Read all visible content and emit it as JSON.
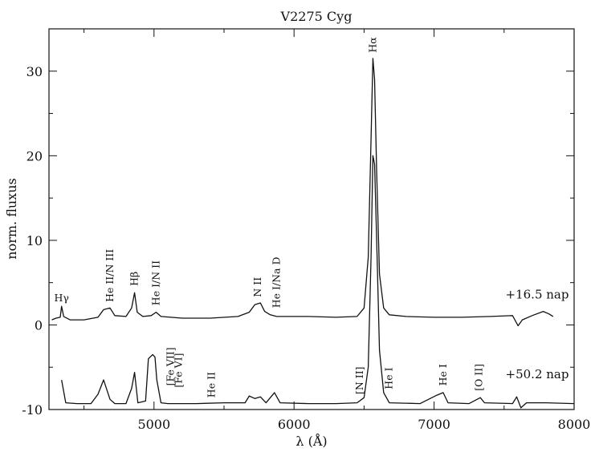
{
  "chart_data": {
    "type": "line",
    "title": "V2275 Cyg",
    "xlabel": "λ (Å)",
    "ylabel": "norm. fluxus",
    "xlim": [
      4250,
      8000
    ],
    "ylim": [
      -10,
      35
    ],
    "x_ticks": [
      "5000",
      "6000",
      "7000",
      "8000"
    ],
    "x_tick_values": [
      5000,
      6000,
      7000,
      8000
    ],
    "y_ticks": [
      "-10",
      "0",
      "10",
      "20",
      "30"
    ],
    "y_tick_values": [
      -10,
      0,
      10,
      20,
      30
    ],
    "series": [
      {
        "name": "+16.5 nap",
        "points": [
          [
            4270,
            0.6
          ],
          [
            4300,
            0.8
          ],
          [
            4330,
            0.9
          ],
          [
            4340,
            2.2
          ],
          [
            4355,
            1.0
          ],
          [
            4400,
            0.6
          ],
          [
            4500,
            0.6
          ],
          [
            4600,
            0.9
          ],
          [
            4640,
            1.8
          ],
          [
            4686,
            2.0
          ],
          [
            4720,
            1.1
          ],
          [
            4800,
            1.0
          ],
          [
            4840,
            2.0
          ],
          [
            4861,
            3.8
          ],
          [
            4880,
            1.5
          ],
          [
            4920,
            1.0
          ],
          [
            4980,
            1.1
          ],
          [
            5015,
            1.5
          ],
          [
            5050,
            1.0
          ],
          [
            5200,
            0.8
          ],
          [
            5400,
            0.8
          ],
          [
            5600,
            1.0
          ],
          [
            5680,
            1.5
          ],
          [
            5720,
            2.4
          ],
          [
            5760,
            2.6
          ],
          [
            5790,
            1.6
          ],
          [
            5830,
            1.2
          ],
          [
            5876,
            1.0
          ],
          [
            5900,
            1.0
          ],
          [
            6100,
            1.0
          ],
          [
            6300,
            0.9
          ],
          [
            6450,
            1.0
          ],
          [
            6500,
            2.0
          ],
          [
            6530,
            8.0
          ],
          [
            6550,
            22.0
          ],
          [
            6563,
            31.5
          ],
          [
            6575,
            29.0
          ],
          [
            6590,
            18.0
          ],
          [
            6610,
            6.0
          ],
          [
            6640,
            2.0
          ],
          [
            6680,
            1.2
          ],
          [
            6800,
            1.0
          ],
          [
            7000,
            0.9
          ],
          [
            7200,
            0.9
          ],
          [
            7400,
            1.0
          ],
          [
            7560,
            1.1
          ],
          [
            7600,
            -0.1
          ],
          [
            7630,
            0.6
          ],
          [
            7700,
            1.1
          ],
          [
            7780,
            1.6
          ],
          [
            7820,
            1.3
          ],
          [
            7850,
            1.0
          ]
        ]
      },
      {
        "name": "+50.2 nap",
        "points": [
          [
            4340,
            -6.5
          ],
          [
            4370,
            -9.2
          ],
          [
            4450,
            -9.3
          ],
          [
            4550,
            -9.3
          ],
          [
            4600,
            -8.2
          ],
          [
            4640,
            -6.5
          ],
          [
            4686,
            -8.8
          ],
          [
            4720,
            -9.3
          ],
          [
            4800,
            -9.3
          ],
          [
            4840,
            -7.5
          ],
          [
            4861,
            -5.6
          ],
          [
            4885,
            -9.2
          ],
          [
            4940,
            -9.0
          ],
          [
            4960,
            -4.0
          ],
          [
            4990,
            -3.5
          ],
          [
            5007,
            -3.8
          ],
          [
            5020,
            -6.5
          ],
          [
            5050,
            -9.2
          ],
          [
            5100,
            -9.3
          ],
          [
            5300,
            -9.3
          ],
          [
            5500,
            -9.2
          ],
          [
            5650,
            -9.2
          ],
          [
            5680,
            -8.4
          ],
          [
            5720,
            -8.7
          ],
          [
            5760,
            -8.5
          ],
          [
            5800,
            -9.2
          ],
          [
            5860,
            -8.0
          ],
          [
            5900,
            -9.2
          ],
          [
            6100,
            -9.3
          ],
          [
            6300,
            -9.3
          ],
          [
            6450,
            -9.2
          ],
          [
            6500,
            -8.6
          ],
          [
            6530,
            -5.0
          ],
          [
            6550,
            8.0
          ],
          [
            6563,
            20.0
          ],
          [
            6575,
            19.0
          ],
          [
            6590,
            10.0
          ],
          [
            6610,
            -3.0
          ],
          [
            6640,
            -8.0
          ],
          [
            6680,
            -9.2
          ],
          [
            6900,
            -9.3
          ],
          [
            7020,
            -8.3
          ],
          [
            7065,
            -8.0
          ],
          [
            7100,
            -9.2
          ],
          [
            7250,
            -9.3
          ],
          [
            7330,
            -8.6
          ],
          [
            7360,
            -9.2
          ],
          [
            7560,
            -9.3
          ],
          [
            7590,
            -8.5
          ],
          [
            7620,
            -9.8
          ],
          [
            7660,
            -9.2
          ],
          [
            7800,
            -9.2
          ],
          [
            8000,
            -9.3
          ]
        ]
      }
    ],
    "annotations": [
      {
        "text": "Hγ",
        "x": 4340,
        "y": 2.8,
        "rotate": 0
      },
      {
        "text": "He II/N III",
        "x": 4686,
        "y": 2.7,
        "rotate": -90
      },
      {
        "text": "Hβ",
        "x": 4861,
        "y": 4.6,
        "rotate": -90
      },
      {
        "text": "He I/N II",
        "x": 5015,
        "y": 2.3,
        "rotate": -90
      },
      {
        "text": "N II",
        "x": 5740,
        "y": 3.3,
        "rotate": -90
      },
      {
        "text": "He I/Na D",
        "x": 5876,
        "y": 2.0,
        "rotate": -90
      },
      {
        "text": "Hα",
        "x": 6563,
        "y": 32.2,
        "rotate": -90
      },
      {
        "text": "[Fe VII]",
        "x": 5120,
        "y": -7.2,
        "rotate": -90
      },
      {
        "text": "[Fe VI]",
        "x": 5176,
        "y": -7.4,
        "rotate": -90
      },
      {
        "text": "He II",
        "x": 5411,
        "y": -8.6,
        "rotate": -90
      },
      {
        "text": "[N II]",
        "x": 6470,
        "y": -8.2,
        "rotate": -90
      },
      {
        "text": "He I",
        "x": 6678,
        "y": -7.6,
        "rotate": -90
      },
      {
        "text": "He I",
        "x": 7065,
        "y": -7.2,
        "rotate": -90
      },
      {
        "text": "[O II]",
        "x": 7320,
        "y": -7.8,
        "rotate": -90
      }
    ],
    "series_labels": [
      {
        "text": "+16.5 nap",
        "x": 7510,
        "y": 3.1
      },
      {
        "text": "+50.2 nap",
        "x": 7510,
        "y": -6.3
      }
    ],
    "grid": false
  }
}
